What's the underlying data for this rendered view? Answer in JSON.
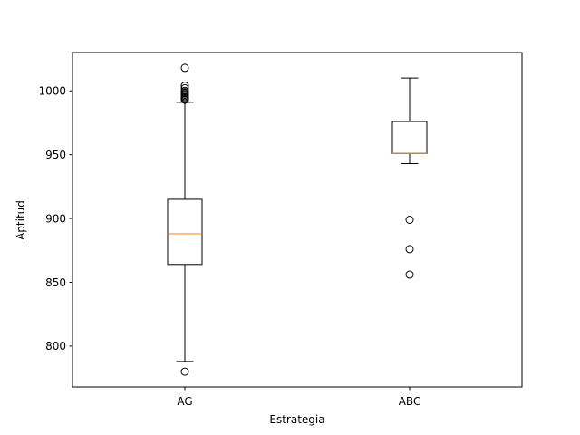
{
  "chart_data": {
    "type": "boxplot",
    "title": "",
    "xlabel": "Estrategia",
    "ylabel": "Aptitud",
    "ylim": [
      768,
      1030
    ],
    "yticks": [
      800,
      850,
      900,
      950,
      1000
    ],
    "grid": false,
    "categories": [
      "AG",
      "ABC"
    ],
    "boxes": [
      {
        "category": "AG",
        "whisker_low": 788,
        "q1": 864,
        "median": 888,
        "q3": 915,
        "whisker_high": 991,
        "outliers": [
          780,
          993,
          994,
          995,
          996,
          997,
          998,
          999,
          1000,
          1002,
          1004,
          1018
        ]
      },
      {
        "category": "ABC",
        "whisker_low": 943,
        "q1": 951,
        "median": 951,
        "q3": 976,
        "whisker_high": 1010,
        "outliers": [
          856,
          876,
          899
        ]
      }
    ],
    "colors": {
      "box": "#000000",
      "median": "#ff7f0e",
      "outlier": "#000000"
    }
  }
}
